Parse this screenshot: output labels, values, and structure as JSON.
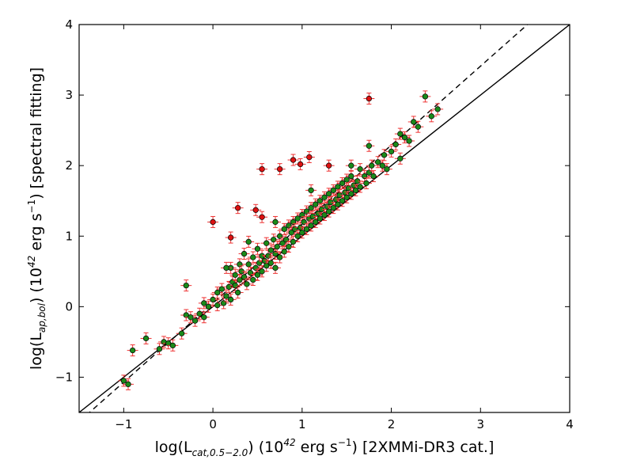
{
  "chart_data": {
    "type": "scatter",
    "xlabel": {
      "pre": "log(L",
      "sub": "cat,0.5−2.0",
      "mid": ")  (10",
      "sup": "42",
      "mid2": " erg s",
      "sup2": "−1",
      "post": ") [2XMMi-DR3 cat.]"
    },
    "ylabel": {
      "pre": "log(L",
      "sub": "ap,bol",
      "mid": ")  (10",
      "sup": "42",
      "mid2": " erg s",
      "sup2": "−1",
      "post": ") [spectral fitting]"
    },
    "xlim": [
      -1.5,
      4
    ],
    "ylim": [
      -1.5,
      4
    ],
    "x_ticks": [
      -1,
      0,
      1,
      2,
      3,
      4
    ],
    "y_ticks": [
      -1,
      0,
      1,
      2,
      3,
      4
    ],
    "x_tick_labels": [
      "−1",
      "0",
      "1",
      "2",
      "3",
      "4"
    ],
    "y_tick_labels": [
      "−1",
      "0",
      "1",
      "2",
      "3",
      "4"
    ],
    "grid": false,
    "reference_lines": [
      {
        "style": "solid",
        "slope": 1.0,
        "intercept": 0.0
      },
      {
        "style": "dashed",
        "slope": 1.12,
        "intercept": 0.05
      }
    ],
    "colors": {
      "green_point": "#1a8a1a",
      "red_point": "#dd1111",
      "errorbar": "#ee3333",
      "line": "#000000"
    },
    "series": [
      {
        "marker_color": "green",
        "points": [
          [
            -1.0,
            -1.05
          ],
          [
            -0.95,
            -1.1
          ],
          [
            -0.9,
            -0.62
          ],
          [
            -0.75,
            -0.45
          ],
          [
            -0.6,
            -0.6
          ],
          [
            -0.55,
            -0.5
          ],
          [
            -0.5,
            -0.52
          ],
          [
            -0.45,
            -0.55
          ],
          [
            -0.35,
            -0.38
          ],
          [
            -0.3,
            -0.12
          ],
          [
            -0.25,
            -0.15
          ],
          [
            -0.3,
            0.3
          ],
          [
            -0.2,
            -0.2
          ],
          [
            -0.15,
            -0.1
          ],
          [
            -0.1,
            0.05
          ],
          [
            -0.05,
            0.0
          ],
          [
            0.0,
            0.1
          ],
          [
            0.05,
            0.2
          ],
          [
            0.05,
            0.02
          ],
          [
            0.1,
            0.25
          ],
          [
            0.12,
            0.05
          ],
          [
            0.15,
            0.15
          ],
          [
            0.18,
            0.28
          ],
          [
            0.2,
            0.1
          ],
          [
            0.2,
            0.55
          ],
          [
            0.22,
            0.35
          ],
          [
            0.25,
            0.45
          ],
          [
            0.25,
            0.3
          ],
          [
            0.28,
            0.2
          ],
          [
            0.3,
            0.6
          ],
          [
            0.3,
            0.38
          ],
          [
            0.32,
            0.5
          ],
          [
            0.35,
            0.42
          ],
          [
            0.35,
            0.75
          ],
          [
            0.38,
            0.32
          ],
          [
            0.4,
            0.6
          ],
          [
            0.42,
            0.48
          ],
          [
            0.45,
            0.7
          ],
          [
            0.45,
            0.38
          ],
          [
            0.48,
            0.55
          ],
          [
            0.5,
            0.82
          ],
          [
            0.5,
            0.45
          ],
          [
            0.52,
            0.62
          ],
          [
            0.55,
            0.5
          ],
          [
            0.55,
            0.72
          ],
          [
            0.58,
            0.65
          ],
          [
            0.6,
            0.9
          ],
          [
            0.6,
            0.58
          ],
          [
            0.62,
            0.72
          ],
          [
            0.65,
            0.8
          ],
          [
            0.65,
            0.62
          ],
          [
            0.68,
            0.95
          ],
          [
            0.7,
            0.75
          ],
          [
            0.7,
            0.55
          ],
          [
            0.72,
            0.85
          ],
          [
            0.75,
            0.7
          ],
          [
            0.75,
            1.0
          ],
          [
            0.78,
            0.9
          ],
          [
            0.8,
            0.78
          ],
          [
            0.8,
            1.1
          ],
          [
            0.82,
            0.95
          ],
          [
            0.85,
            0.85
          ],
          [
            0.85,
            1.15
          ],
          [
            0.88,
            1.05
          ],
          [
            0.9,
            0.92
          ],
          [
            0.9,
            1.2
          ],
          [
            0.92,
            1.1
          ],
          [
            0.95,
            1.0
          ],
          [
            0.95,
            1.25
          ],
          [
            0.98,
            1.12
          ],
          [
            1.0,
            1.05
          ],
          [
            1.0,
            1.3
          ],
          [
            1.02,
            1.2
          ],
          [
            1.05,
            1.1
          ],
          [
            1.05,
            1.35
          ],
          [
            1.08,
            1.25
          ],
          [
            1.1,
            1.15
          ],
          [
            1.1,
            1.4
          ],
          [
            1.12,
            1.28
          ],
          [
            1.15,
            1.2
          ],
          [
            1.15,
            1.45
          ],
          [
            1.18,
            1.32
          ],
          [
            1.2,
            1.25
          ],
          [
            1.2,
            1.5
          ],
          [
            1.22,
            1.38
          ],
          [
            1.25,
            1.3
          ],
          [
            1.25,
            1.55
          ],
          [
            1.28,
            1.42
          ],
          [
            1.3,
            1.35
          ],
          [
            1.3,
            1.6
          ],
          [
            1.32,
            1.48
          ],
          [
            1.35,
            1.4
          ],
          [
            1.35,
            1.65
          ],
          [
            1.38,
            1.52
          ],
          [
            1.4,
            1.45
          ],
          [
            1.4,
            1.7
          ],
          [
            1.42,
            1.58
          ],
          [
            1.45,
            1.5
          ],
          [
            1.45,
            1.75
          ],
          [
            1.48,
            1.62
          ],
          [
            1.5,
            1.55
          ],
          [
            1.5,
            1.8
          ],
          [
            1.52,
            1.68
          ],
          [
            1.55,
            1.6
          ],
          [
            1.55,
            1.85
          ],
          [
            1.58,
            1.72
          ],
          [
            1.6,
            1.65
          ],
          [
            1.62,
            1.78
          ],
          [
            1.65,
            1.7
          ],
          [
            1.65,
            1.95
          ],
          [
            1.7,
            1.85
          ],
          [
            1.72,
            1.75
          ],
          [
            1.75,
            1.9
          ],
          [
            1.78,
            2.0
          ],
          [
            1.8,
            1.85
          ],
          [
            1.85,
            2.05
          ],
          [
            1.9,
            2.0
          ],
          [
            1.92,
            2.15
          ],
          [
            1.95,
            1.95
          ],
          [
            2.0,
            2.2
          ],
          [
            2.05,
            2.3
          ],
          [
            2.1,
            2.1
          ],
          [
            2.1,
            2.45
          ],
          [
            2.15,
            2.4
          ],
          [
            2.2,
            2.35
          ],
          [
            2.25,
            2.62
          ],
          [
            2.3,
            2.55
          ],
          [
            2.38,
            2.98
          ],
          [
            2.45,
            2.7
          ],
          [
            2.52,
            2.8
          ],
          [
            1.75,
            2.28
          ],
          [
            1.55,
            2.0
          ],
          [
            1.1,
            1.65
          ],
          [
            0.7,
            1.2
          ],
          [
            0.4,
            0.92
          ],
          [
            0.15,
            0.55
          ],
          [
            -0.1,
            -0.15
          ]
        ]
      },
      {
        "marker_color": "red",
        "points": [
          [
            0.0,
            1.2
          ],
          [
            0.2,
            0.98
          ],
          [
            0.28,
            1.4
          ],
          [
            0.48,
            1.37
          ],
          [
            0.55,
            1.27
          ],
          [
            0.55,
            1.95
          ],
          [
            0.75,
            1.95
          ],
          [
            0.9,
            2.08
          ],
          [
            0.98,
            2.02
          ],
          [
            1.08,
            2.12
          ],
          [
            1.3,
            2.0
          ],
          [
            1.75,
            2.95
          ]
        ]
      }
    ]
  }
}
